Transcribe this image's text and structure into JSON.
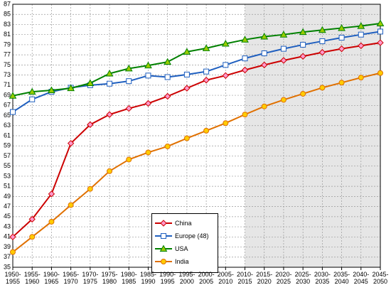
{
  "chart_data": {
    "type": "line",
    "categories": [
      "1950-\n1955",
      "1955-\n1960",
      "1960-\n1965",
      "1965-\n1970",
      "1970-\n1975",
      "1975-\n1980",
      "1980-\n1985",
      "1985-\n1990",
      "1990-\n1995",
      "1995-\n2000",
      "2000-\n2005",
      "2005-\n2010",
      "2010-\n2015",
      "2015-\n2020",
      "2020-\n2025",
      "2025-\n2030",
      "2030-\n2035",
      "2035-\n2040",
      "2040-\n2045",
      "2045-\n2050"
    ],
    "series": [
      {
        "name": "China",
        "color": "#cc0000",
        "marker": "diamond",
        "marker_fill": "#ff99cc",
        "values": [
          41,
          44.5,
          49.5,
          59.5,
          63.2,
          65.2,
          66.4,
          67.4,
          68.8,
          70.4,
          72.0,
          72.9,
          74.0,
          75.0,
          75.9,
          76.7,
          77.5,
          78.2,
          78.8,
          79.4
        ]
      },
      {
        "name": "Europe (48)",
        "color": "#1f5fbf",
        "marker": "square",
        "marker_fill": "#ffffff",
        "values": [
          65.7,
          68.2,
          69.7,
          70.5,
          71.0,
          71.3,
          71.8,
          72.9,
          72.6,
          73.1,
          73.7,
          75.0,
          76.3,
          77.3,
          78.2,
          79.0,
          79.7,
          80.4,
          81.0,
          81.6
        ]
      },
      {
        "name": "USA",
        "color": "#008000",
        "marker": "triangle",
        "marker_fill": "#99cc00",
        "values": [
          68.9,
          69.7,
          70.0,
          70.4,
          71.4,
          73.3,
          74.3,
          74.9,
          75.6,
          77.6,
          78.3,
          79.2,
          80.0,
          80.6,
          81.0,
          81.5,
          81.9,
          82.3,
          82.7,
          83.2
        ]
      },
      {
        "name": "India",
        "color": "#e07000",
        "marker": "circle",
        "marker_fill": "#ffcc00",
        "values": [
          38.0,
          41.0,
          44.0,
          47.3,
          50.5,
          54.0,
          56.3,
          57.7,
          58.9,
          60.5,
          62.0,
          63.5,
          65.2,
          66.8,
          68.1,
          69.3,
          70.5,
          71.5,
          72.5,
          73.4
        ]
      }
    ],
    "ylim": [
      35,
      87
    ],
    "yticks": [
      35,
      37,
      39,
      41,
      43,
      45,
      47,
      49,
      51,
      53,
      55,
      57,
      59,
      61,
      63,
      65,
      67,
      69,
      71,
      73,
      75,
      77,
      79,
      81,
      83,
      85,
      87
    ],
    "grid": true,
    "legend": "lower center"
  }
}
